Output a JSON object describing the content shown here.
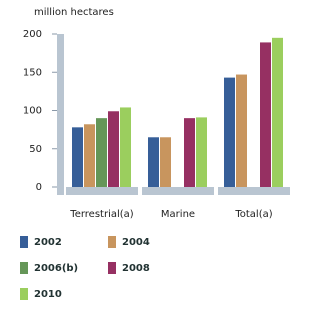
{
  "chart_data": {
    "type": "bar",
    "y_label": "million hectares",
    "categories": [
      "Terrestrial(a)",
      "Marine",
      "Total(a)"
    ],
    "series": [
      {
        "name": "2002",
        "color": "#365e98",
        "values": [
          78,
          65,
          143
        ]
      },
      {
        "name": "2004",
        "color": "#c8955e",
        "values": [
          82,
          65,
          147
        ]
      },
      {
        "name": "2006(b)",
        "color": "#659658",
        "values": [
          90,
          null,
          null
        ]
      },
      {
        "name": "2008",
        "color": "#963062",
        "values": [
          99,
          90,
          189
        ]
      },
      {
        "name": "2010",
        "color": "#9bce5e",
        "values": [
          104,
          91,
          195
        ]
      }
    ],
    "ylim": [
      0,
      200
    ],
    "yticks": [
      0,
      50,
      100,
      150,
      200
    ],
    "legend": "bottom"
  }
}
